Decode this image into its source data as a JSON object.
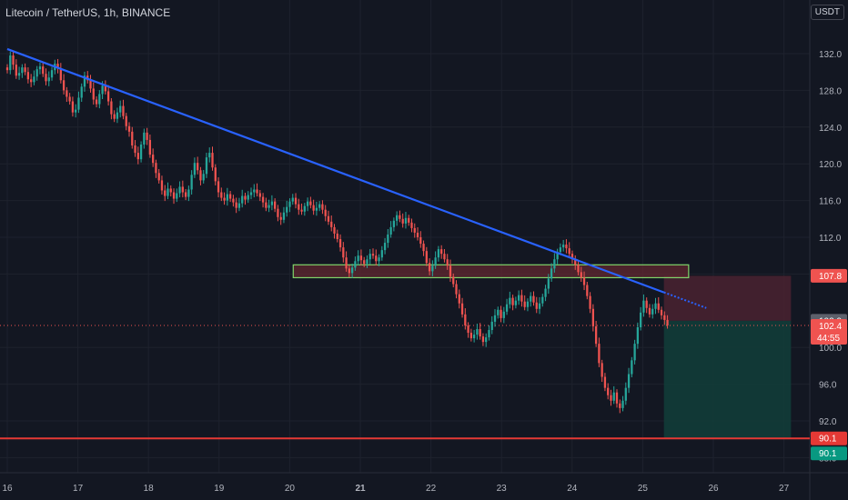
{
  "header": {
    "title": "Litecoin / TetherUS, 1h, BINANCE",
    "currency": "USDT"
  },
  "colors": {
    "background": "#131722",
    "up": "#26a69a",
    "down": "#ef5350",
    "trendline": "#2962ff",
    "zone_border": "#7fd46a",
    "zone_fill": "#6d2a33",
    "stop_fill": "#4a2230",
    "target_fill": "#123c39",
    "support_line": "#e53935",
    "grid": "#1e222d"
  },
  "badges": {
    "stop": "107.8",
    "entry": "102.9",
    "price": "102.4",
    "countdown": "44:55",
    "support": "90.1",
    "target": "90.1"
  },
  "chart_data": {
    "type": "candlestick",
    "title": "Litecoin / TetherUS, 1h, BINANCE",
    "ylabel": "USDT",
    "ylim": [
      88.5,
      134.5
    ],
    "xlim": [
      16.0,
      27.4
    ],
    "y_ticks": [
      "132.0",
      "128.0",
      "124.0",
      "120.0",
      "116.0",
      "112.0",
      "108.0",
      "100.0",
      "96.0",
      "92.0",
      "88.0"
    ],
    "y_tick_values": [
      132,
      128,
      124,
      120,
      116,
      112,
      108,
      100,
      96,
      92,
      88
    ],
    "x_ticks": [
      {
        "label": "16",
        "x": 16.0,
        "bold": false
      },
      {
        "label": "17",
        "x": 17.0,
        "bold": false
      },
      {
        "label": "18",
        "x": 18.0,
        "bold": false
      },
      {
        "label": "19",
        "x": 19.0,
        "bold": false
      },
      {
        "label": "20",
        "x": 20.0,
        "bold": false
      },
      {
        "label": "21",
        "x": 21.0,
        "bold": true
      },
      {
        "label": "22",
        "x": 22.0,
        "bold": false
      },
      {
        "label": "23",
        "x": 23.0,
        "bold": false
      },
      {
        "label": "24",
        "x": 24.0,
        "bold": false
      },
      {
        "label": "25",
        "x": 25.0,
        "bold": false
      },
      {
        "label": "26",
        "x": 26.0,
        "bold": false
      },
      {
        "label": "27",
        "x": 27.0,
        "bold": false
      }
    ],
    "closes": [
      130.2,
      131.8,
      130.8,
      129.6,
      129.9,
      130.5,
      130.0,
      129.2,
      128.9,
      129.5,
      130.3,
      130.6,
      129.8,
      129.0,
      129.4,
      130.2,
      130.9,
      130.4,
      129.1,
      128.0,
      127.3,
      126.8,
      125.6,
      125.9,
      127.2,
      128.4,
      129.6,
      129.1,
      128.2,
      127.0,
      126.5,
      127.6,
      128.5,
      127.9,
      126.8,
      125.4,
      124.9,
      125.6,
      126.3,
      125.2,
      124.1,
      123.5,
      122.0,
      121.2,
      120.5,
      122.1,
      123.4,
      122.6,
      121.0,
      120.1,
      119.0,
      118.2,
      117.1,
      116.5,
      117.3,
      116.9,
      116.2,
      116.8,
      117.5,
      116.9,
      116.4,
      117.2,
      118.8,
      120.1,
      119.3,
      118.2,
      118.9,
      120.7,
      121.2,
      119.6,
      118.1,
      116.9,
      116.3,
      116.0,
      116.7,
      116.2,
      115.8,
      115.2,
      115.7,
      116.5,
      116.1,
      116.6,
      116.9,
      117.2,
      116.8,
      116.4,
      115.8,
      115.2,
      115.5,
      115.9,
      115.1,
      114.2,
      113.9,
      114.7,
      115.3,
      115.9,
      116.3,
      115.6,
      115.0,
      114.8,
      115.4,
      115.9,
      115.5,
      114.9,
      115.2,
      115.6,
      115.0,
      114.3,
      113.7,
      113.1,
      112.4,
      111.8,
      110.9,
      109.8,
      108.6,
      108.1,
      108.7,
      109.4,
      110.0,
      109.5,
      109.1,
      109.6,
      110.2,
      110.0,
      109.4,
      109.8,
      110.6,
      111.4,
      112.3,
      113.1,
      113.8,
      114.4,
      114.0,
      113.5,
      114.1,
      113.6,
      113.0,
      112.5,
      112.0,
      111.3,
      110.5,
      109.2,
      108.3,
      108.9,
      109.8,
      110.7,
      110.2,
      109.6,
      108.9,
      107.7,
      106.9,
      105.8,
      104.8,
      103.6,
      102.4,
      101.6,
      101.0,
      101.4,
      102.0,
      101.2,
      100.6,
      101.1,
      101.9,
      102.8,
      103.5,
      104.1,
      103.2,
      103.9,
      104.7,
      105.4,
      104.6,
      105.1,
      105.7,
      105.0,
      104.4,
      105.0,
      105.6,
      104.9,
      104.2,
      104.8,
      105.5,
      106.4,
      107.5,
      108.6,
      109.6,
      110.4,
      110.9,
      111.2,
      110.8,
      110.2,
      109.6,
      109.0,
      108.2,
      107.6,
      106.8,
      105.6,
      104.2,
      102.3,
      100.4,
      98.3,
      96.8,
      95.6,
      94.8,
      94.2,
      95.1,
      93.9,
      93.4,
      94.2,
      95.6,
      97.1,
      98.6,
      100.4,
      102.2,
      103.8,
      105.1,
      104.3,
      103.6,
      104.2,
      104.8,
      104.1,
      103.5,
      103.0,
      102.4
    ]
  }
}
